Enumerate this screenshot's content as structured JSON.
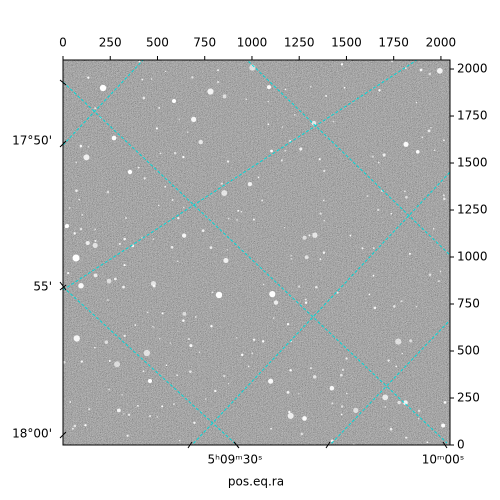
{
  "chart_data": {
    "type": "image",
    "xlabel": "pos.eq.ra",
    "xlim": [
      0,
      2048
    ],
    "ylim": [
      0,
      2048
    ],
    "xticks": [
      0,
      250,
      500,
      750,
      1000,
      1250,
      1500,
      1750,
      2000
    ],
    "yticks": [
      0,
      250,
      500,
      750,
      1000,
      1250,
      1500,
      1750,
      2000
    ],
    "ra_ticks": [
      "5ʰ09ᵐ30ˢ",
      "10ᵐ00ˢ"
    ],
    "dec_ticks": [
      "17°50'",
      "55'",
      "18°00'"
    ],
    "grid": true,
    "grid_color": "#00d8d8"
  }
}
